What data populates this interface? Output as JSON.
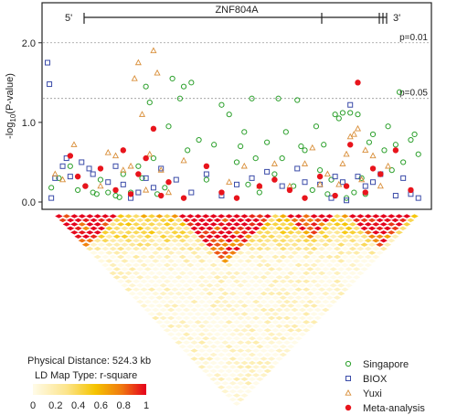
{
  "chart_data": {
    "type": "scatter",
    "gene_label": "ZNF804A",
    "strand_start": "5'",
    "strand_end": "3'",
    "ylabel": "-log10(P-value)",
    "ylabel_parts": {
      "base": "-log",
      "sub": "10",
      "rest": "(P-value)"
    },
    "ylim": [
      0,
      2.25
    ],
    "yticks": [
      "0.0",
      "1.0",
      "2.0"
    ],
    "ytick_values": [
      0,
      1,
      2
    ],
    "thresholds": [
      {
        "label": "p=0.01",
        "value": 2.0
      },
      {
        "label": "p=0.05",
        "value": 1.301
      }
    ],
    "xlim": [
      0,
      100
    ],
    "series": [
      {
        "name": "Singapore",
        "marker": "circle-open",
        "color": "#2ca02c",
        "points": [
          [
            1,
            0.18
          ],
          [
            3,
            0.3
          ],
          [
            6,
            0.45
          ],
          [
            8,
            0.15
          ],
          [
            10,
            0.2
          ],
          [
            12,
            0.12
          ],
          [
            13,
            0.1
          ],
          [
            14,
            0.28
          ],
          [
            16,
            0.12
          ],
          [
            18,
            0.08
          ],
          [
            19,
            0.06
          ],
          [
            20,
            0.35
          ],
          [
            22,
            0.12
          ],
          [
            24,
            0.45
          ],
          [
            25,
            0.3
          ],
          [
            26,
            1.45
          ],
          [
            27,
            1.25
          ],
          [
            28,
            0.55
          ],
          [
            29,
            0.1
          ],
          [
            31,
            0.18
          ],
          [
            32,
            0.95
          ],
          [
            33,
            1.55
          ],
          [
            35,
            1.3
          ],
          [
            36,
            1.45
          ],
          [
            37,
            0.65
          ],
          [
            38,
            1.5
          ],
          [
            40,
            0.78
          ],
          [
            42,
            0.28
          ],
          [
            44,
            0.72
          ],
          [
            46,
            1.22
          ],
          [
            48,
            1.1
          ],
          [
            50,
            0.5
          ],
          [
            51,
            0.7
          ],
          [
            52,
            0.88
          ],
          [
            53,
            0.22
          ],
          [
            54,
            1.3
          ],
          [
            55,
            0.55
          ],
          [
            56,
            0.12
          ],
          [
            58,
            0.75
          ],
          [
            60,
            0.35
          ],
          [
            61,
            1.3
          ],
          [
            62,
            0.55
          ],
          [
            63,
            0.88
          ],
          [
            65,
            0.2
          ],
          [
            66,
            1.28
          ],
          [
            67,
            0.7
          ],
          [
            68,
            0.65
          ],
          [
            70,
            0.15
          ],
          [
            71,
            0.95
          ],
          [
            72,
            0.4
          ],
          [
            73,
            0.72
          ],
          [
            74,
            0.1
          ],
          [
            75,
            0.28
          ],
          [
            76,
            1.1
          ],
          [
            77,
            1.05
          ],
          [
            78,
            1.12
          ],
          [
            79,
            0.05
          ],
          [
            80,
            1.12
          ],
          [
            81,
            0.12
          ],
          [
            82,
            1.1
          ],
          [
            83,
            0.3
          ],
          [
            84,
            0.1
          ],
          [
            85,
            0.75
          ],
          [
            86,
            0.85
          ],
          [
            88,
            0.35
          ],
          [
            89,
            0.65
          ],
          [
            90,
            0.95
          ],
          [
            91,
            0.4
          ],
          [
            92,
            0.72
          ],
          [
            93,
            1.38
          ],
          [
            94,
            0.5
          ],
          [
            96,
            0.78
          ],
          [
            97,
            0.85
          ],
          [
            98,
            0.6
          ]
        ]
      },
      {
        "name": "BIOX",
        "marker": "square-open",
        "color": "#3a4ba8",
        "points": [
          [
            0,
            1.75
          ],
          [
            0.5,
            1.48
          ],
          [
            1,
            0.05
          ],
          [
            2,
            0.3
          ],
          [
            4,
            0.45
          ],
          [
            5,
            0.55
          ],
          [
            6,
            0.32
          ],
          [
            9,
            0.5
          ],
          [
            11,
            0.42
          ],
          [
            12,
            0.35
          ],
          [
            16,
            0.25
          ],
          [
            18,
            0.45
          ],
          [
            20,
            0.22
          ],
          [
            22,
            0.05
          ],
          [
            24,
            0.12
          ],
          [
            26,
            0.3
          ],
          [
            28,
            0.18
          ],
          [
            30,
            0.42
          ],
          [
            34,
            0.28
          ],
          [
            38,
            0.12
          ],
          [
            42,
            0.35
          ],
          [
            46,
            0.08
          ],
          [
            50,
            0.22
          ],
          [
            54,
            0.3
          ],
          [
            58,
            0.38
          ],
          [
            62,
            0.2
          ],
          [
            66,
            0.42
          ],
          [
            68,
            0.25
          ],
          [
            72,
            0.22
          ],
          [
            75,
            0.05
          ],
          [
            76,
            0.32
          ],
          [
            78,
            0.25
          ],
          [
            79,
            0.02
          ],
          [
            80,
            1.22
          ],
          [
            82,
            0.32
          ],
          [
            84,
            0.2
          ],
          [
            86,
            0.25
          ],
          [
            88,
            0.35
          ],
          [
            92,
            0.08
          ],
          [
            94,
            0.3
          ],
          [
            96,
            0.1
          ],
          [
            98,
            0.05
          ]
        ]
      },
      {
        "name": "Yuxi",
        "marker": "triangle-open",
        "color": "#d98f3a",
        "points": [
          [
            2,
            0.35
          ],
          [
            4,
            0.28
          ],
          [
            7,
            0.72
          ],
          [
            14,
            0.2
          ],
          [
            16,
            0.62
          ],
          [
            18,
            0.58
          ],
          [
            20,
            0.4
          ],
          [
            22,
            0.45
          ],
          [
            23,
            1.55
          ],
          [
            24,
            1.75
          ],
          [
            25,
            1.1
          ],
          [
            26,
            0.15
          ],
          [
            27,
            0.6
          ],
          [
            28,
            1.9
          ],
          [
            29,
            1.62
          ],
          [
            30,
            0.4
          ],
          [
            32,
            0.12
          ],
          [
            36,
            0.52
          ],
          [
            48,
            0.25
          ],
          [
            52,
            0.45
          ],
          [
            56,
            0.2
          ],
          [
            60,
            0.48
          ],
          [
            64,
            0.2
          ],
          [
            68,
            0.48
          ],
          [
            70,
            0.68
          ],
          [
            72,
            0.22
          ],
          [
            74,
            0.35
          ],
          [
            77,
            0.22
          ],
          [
            78,
            0.48
          ],
          [
            79,
            0.6
          ],
          [
            80,
            0.82
          ],
          [
            81,
            0.85
          ],
          [
            82,
            0.92
          ],
          [
            83,
            0.28
          ],
          [
            84,
            0.65
          ],
          [
            86,
            0.58
          ],
          [
            88,
            0.2
          ],
          [
            90,
            0.45
          ]
        ]
      },
      {
        "name": "Meta-analysis",
        "marker": "circle-filled",
        "color": "#e8141c",
        "points": [
          [
            6,
            0.58
          ],
          [
            8,
            0.32
          ],
          [
            10,
            0.2
          ],
          [
            14,
            0.42
          ],
          [
            18,
            0.15
          ],
          [
            20,
            0.65
          ],
          [
            22,
            0.1
          ],
          [
            24,
            0.35
          ],
          [
            26,
            0.55
          ],
          [
            28,
            0.92
          ],
          [
            30,
            0.08
          ],
          [
            32,
            0.25
          ],
          [
            36,
            0.05
          ],
          [
            42,
            0.45
          ],
          [
            46,
            0.12
          ],
          [
            50,
            0.05
          ],
          [
            56,
            0.2
          ],
          [
            60,
            0.28
          ],
          [
            64,
            0.15
          ],
          [
            68,
            0.05
          ],
          [
            72,
            0.32
          ],
          [
            76,
            0.08
          ],
          [
            79,
            0.2
          ],
          [
            80,
            0.72
          ],
          [
            82,
            1.5
          ],
          [
            84,
            0.12
          ],
          [
            86,
            0.42
          ],
          [
            88,
            0.35
          ],
          [
            92,
            0.65
          ],
          [
            96,
            0.15
          ]
        ]
      }
    ],
    "legend": {
      "placement": "bottom-right",
      "entries": [
        "Singapore",
        "BIOX",
        "Yuxi",
        "Meta-analysis"
      ]
    },
    "ld_map": {
      "physical_distance": "Physical Distance: 524.3 kb",
      "map_type": "LD Map Type: r-square",
      "colorbar_ticks": [
        "0",
        "0.2",
        "0.4",
        "0.6",
        "0.8",
        "1"
      ],
      "colorbar_range": [
        0,
        1
      ],
      "colors": {
        "low": "#fffbe8",
        "mid": "#f5c400",
        "high": "#e5001c"
      }
    }
  }
}
